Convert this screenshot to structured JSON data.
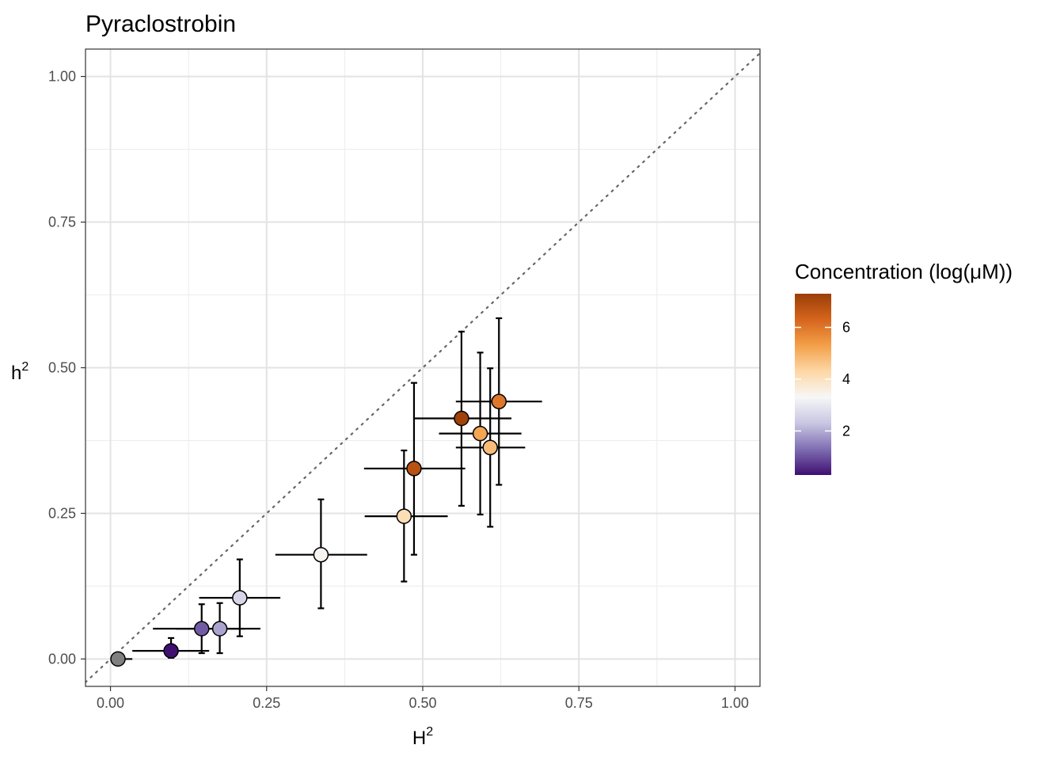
{
  "chart_data": {
    "type": "scatter",
    "title": "Pyraclostrobin",
    "xlabel": {
      "base": "H",
      "sup": "2"
    },
    "ylabel": {
      "base": "h",
      "sup": "2"
    },
    "xlim": [
      -0.04,
      1.04
    ],
    "ylim": [
      -0.047,
      1.047
    ],
    "x_ticks": [
      0.0,
      0.25,
      0.5,
      0.75,
      1.0
    ],
    "x_tick_labels": [
      "0.00",
      "0.25",
      "0.50",
      "0.75",
      "1.00"
    ],
    "y_ticks": [
      0.0,
      0.25,
      0.5,
      0.75,
      1.0
    ],
    "y_tick_labels": [
      "0.00",
      "0.25",
      "0.50",
      "0.75",
      "1.00"
    ],
    "grid": true,
    "reference_line": {
      "style": "dotted",
      "slope": 1,
      "intercept": 0,
      "color": "#666666"
    },
    "legend": {
      "title": "Concentration (log(μM))",
      "position": "right",
      "range": [
        0.3,
        7.3
      ],
      "ticks": [
        2,
        4,
        6
      ],
      "tick_labels": [
        "2",
        "4",
        "6"
      ],
      "colors": [
        "#3f0f72",
        "#7f6eb2",
        "#c9c6e2",
        "#f7f7f7",
        "#fdd8a6",
        "#f3a049",
        "#d6651d",
        "#9a3e07"
      ]
    },
    "na_color": "#808080",
    "points": [
      {
        "H2": 0.012,
        "H2_lo": 0.0,
        "H2_hi": 0.035,
        "h2": 0.0,
        "h2_lo": 0.0,
        "h2_hi": 0.0,
        "conc": null
      },
      {
        "H2": 0.097,
        "H2_lo": 0.035,
        "H2_hi": 0.158,
        "h2": 0.014,
        "h2_lo": 0.002,
        "h2_hi": 0.036,
        "conc": 0.3
      },
      {
        "H2": 0.146,
        "H2_lo": 0.068,
        "H2_hi": 0.215,
        "h2": 0.052,
        "h2_lo": 0.01,
        "h2_hi": 0.094,
        "conc": 1.1
      },
      {
        "H2": 0.175,
        "H2_lo": 0.105,
        "H2_hi": 0.24,
        "h2": 0.052,
        "h2_lo": 0.01,
        "h2_hi": 0.096,
        "conc": 1.9
      },
      {
        "H2": 0.207,
        "H2_lo": 0.142,
        "H2_hi": 0.272,
        "h2": 0.105,
        "h2_lo": 0.039,
        "h2_hi": 0.171,
        "conc": 2.6
      },
      {
        "H2": 0.337,
        "H2_lo": 0.264,
        "H2_hi": 0.411,
        "h2": 0.179,
        "h2_lo": 0.087,
        "h2_hi": 0.274,
        "conc": 3.4
      },
      {
        "H2": 0.47,
        "H2_lo": 0.407,
        "H2_hi": 0.54,
        "h2": 0.245,
        "h2_lo": 0.133,
        "h2_hi": 0.358,
        "conc": 4.1
      },
      {
        "H2": 0.486,
        "H2_lo": 0.406,
        "H2_hi": 0.568,
        "h2": 0.327,
        "h2_lo": 0.179,
        "h2_hi": 0.474,
        "conc": 6.8
      },
      {
        "H2": 0.562,
        "H2_lo": 0.485,
        "H2_hi": 0.642,
        "h2": 0.413,
        "h2_lo": 0.263,
        "h2_hi": 0.562,
        "conc": 7.2
      },
      {
        "H2": 0.592,
        "H2_lo": 0.526,
        "H2_hi": 0.658,
        "h2": 0.387,
        "h2_lo": 0.248,
        "h2_hi": 0.526,
        "conc": 5.2
      },
      {
        "H2": 0.608,
        "H2_lo": 0.553,
        "H2_hi": 0.664,
        "h2": 0.363,
        "h2_lo": 0.227,
        "h2_hi": 0.499,
        "conc": 4.8
      },
      {
        "H2": 0.622,
        "H2_lo": 0.553,
        "H2_hi": 0.691,
        "h2": 0.442,
        "h2_lo": 0.299,
        "h2_hi": 0.585,
        "conc": 6.0
      }
    ]
  }
}
